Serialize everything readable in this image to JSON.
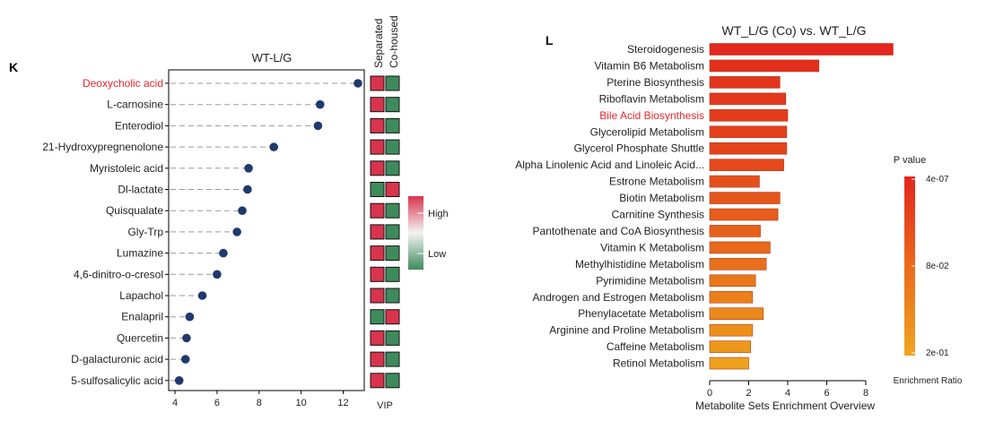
{
  "panel_k_label": "K",
  "panel_l_label": "L",
  "chart_data": [
    {
      "type": "scatter",
      "title": "WT-L/G",
      "xlabel": "VIP",
      "x_ticks": [
        4,
        6,
        8,
        10,
        12
      ],
      "xlim": [
        3.7,
        13
      ],
      "categories": [
        "Deoxycholic acid",
        "L-carnosine",
        "Enterodiol",
        "21-Hydroxypregnenolone",
        "Myristoleic acid",
        "Dl-lactate",
        "Quisqualate",
        "Gly-Trp",
        "Lumazine",
        "4,6-dinitro-o-cresol",
        "Lapachol",
        "Enalapril",
        "Quercetin",
        "D-galacturonic acid",
        "5-sulfosalicylic acid"
      ],
      "values": [
        12.7,
        10.9,
        10.8,
        8.7,
        7.5,
        7.45,
        7.2,
        6.95,
        6.3,
        6.0,
        5.3,
        4.7,
        4.55,
        4.5,
        4.2
      ],
      "highlight": "Deoxycholic acid",
      "highlight_color": "#e8262b",
      "dot_color": "#1e3a6e",
      "heatmap_columns": [
        "Separated",
        "Co-housed"
      ],
      "heatmap_levels": [
        [
          "High",
          "Low"
        ],
        [
          "High",
          "Low"
        ],
        [
          "High",
          "Low"
        ],
        [
          "High",
          "Low"
        ],
        [
          "High",
          "Low"
        ],
        [
          "Low",
          "High"
        ],
        [
          "High",
          "Low"
        ],
        [
          "High",
          "Low"
        ],
        [
          "High",
          "Low"
        ],
        [
          "High",
          "Low"
        ],
        [
          "High",
          "Low"
        ],
        [
          "Low",
          "High"
        ],
        [
          "High",
          "Low"
        ],
        [
          "High",
          "Low"
        ],
        [
          "High",
          "Low"
        ]
      ],
      "legend": {
        "high": "High",
        "low": "Low",
        "high_color": "#d8344d",
        "low_color": "#3f8a5a"
      }
    },
    {
      "type": "bar",
      "title": "WT_L/G (Co) vs. WT_L/G",
      "xlabel": "Metabolite Sets Enrichment Overview",
      "x_ticks": [
        0,
        2,
        4,
        6,
        8
      ],
      "xlim": [
        0,
        9.5
      ],
      "categories": [
        "Steroidogenesis",
        "Vitamin B6 Metabolism",
        "Pterine Biosynthesis",
        "Riboflavin Metabolism",
        "Bile Acid Biosynthesis",
        "Glycerolipid Metabolism",
        "Glycerol Phosphate Shuttle",
        "Alpha Linolenic Acid and Linoleic Acid...",
        "Estrone Metabolism",
        "Biotin Metabolism",
        "Carnitine Synthesis",
        "Pantothenate and CoA Biosynthesis",
        "Vitamin K Metabolism",
        "Methylhistidine Metabolism",
        "Pyrimidine Metabolism",
        "Androgen and Estrogen Metabolism",
        "Phenylacetate Metabolism",
        "Arginine and Proline Metabolism",
        "Caffeine Metabolism",
        "Retinol Metabolism"
      ],
      "values": [
        9.4,
        5.6,
        3.6,
        3.9,
        4.0,
        3.95,
        3.95,
        3.8,
        2.55,
        3.6,
        3.5,
        2.6,
        3.1,
        2.9,
        2.35,
        2.2,
        2.75,
        2.2,
        2.1,
        2.0
      ],
      "colors": [
        "#e3261e",
        "#e3301d",
        "#e2341d",
        "#e2381d",
        "#e23c1c",
        "#e3401c",
        "#e3441c",
        "#e4481b",
        "#e4501c",
        "#e5561b",
        "#e55c1b",
        "#e6621b",
        "#e7691b",
        "#e8701b",
        "#e9781a",
        "#ea801a",
        "#eb881a",
        "#ec901a",
        "#ed981b",
        "#eea11d"
      ],
      "highlight": "Bile Acid Biosynthesis",
      "highlight_color": "#e8262b",
      "legend": {
        "title": "P value",
        "ticks": [
          "4e-07",
          "8e-02",
          "2e-01"
        ],
        "subtitle": "Enrichment Ratio",
        "top_color": "#e3261e",
        "bottom_color": "#f0a422"
      }
    }
  ]
}
